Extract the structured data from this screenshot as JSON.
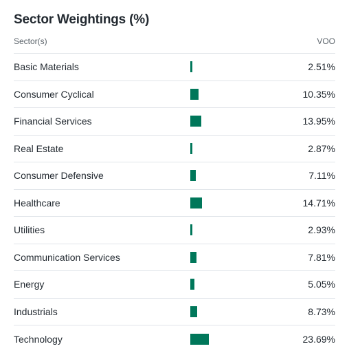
{
  "title": "Sector Weightings (%)",
  "header": {
    "sector_label": "Sector(s)",
    "fund_label": "VOO"
  },
  "colors": {
    "bar": "#00775a",
    "divider": "#e0e4e9",
    "text": "#232a31",
    "muted": "#5b636a"
  },
  "sectors": [
    {
      "name": "Basic Materials",
      "value": 2.51,
      "display": "2.51%"
    },
    {
      "name": "Consumer Cyclical",
      "value": 10.35,
      "display": "10.35%"
    },
    {
      "name": "Financial Services",
      "value": 13.95,
      "display": "13.95%"
    },
    {
      "name": "Real Estate",
      "value": 2.87,
      "display": "2.87%"
    },
    {
      "name": "Consumer Defensive",
      "value": 7.11,
      "display": "7.11%"
    },
    {
      "name": "Healthcare",
      "value": 14.71,
      "display": "14.71%"
    },
    {
      "name": "Utilities",
      "value": 2.93,
      "display": "2.93%"
    },
    {
      "name": "Communication Services",
      "value": 7.81,
      "display": "7.81%"
    },
    {
      "name": "Energy",
      "value": 5.05,
      "display": "5.05%"
    },
    {
      "name": "Industrials",
      "value": 8.73,
      "display": "8.73%"
    },
    {
      "name": "Technology",
      "value": 23.69,
      "display": "23.69%"
    }
  ]
}
